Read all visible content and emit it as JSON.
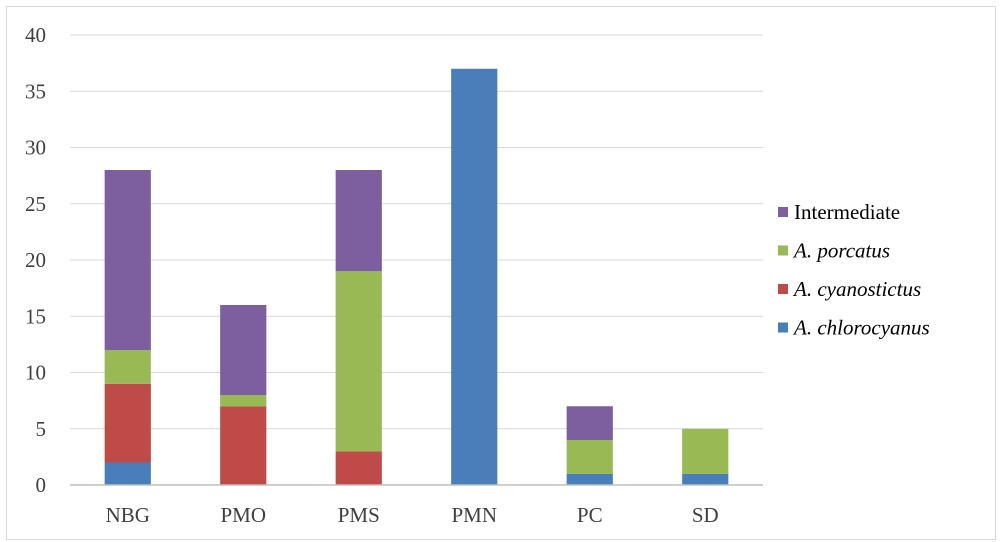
{
  "chart_data": {
    "type": "bar",
    "stacked": true,
    "categories": [
      "NBG",
      "PMO",
      "PMS",
      "PMN",
      "PC",
      "SD"
    ],
    "series": [
      {
        "name": "A. chlorocyanus",
        "italic": true,
        "color": "#4a7ebb",
        "values": [
          2,
          0,
          0,
          37,
          1,
          1
        ]
      },
      {
        "name": "A. cyanostictus",
        "italic": true,
        "color": "#be4b48",
        "values": [
          7,
          7,
          3,
          0,
          0,
          0
        ]
      },
      {
        "name": "A. porcatus",
        "italic": true,
        "color": "#98b954",
        "values": [
          3,
          1,
          16,
          0,
          3,
          4
        ]
      },
      {
        "name": "Intermediate",
        "italic": false,
        "color": "#7d5fa0",
        "values": [
          16,
          8,
          9,
          0,
          3,
          0
        ]
      }
    ],
    "legend_order": [
      "Intermediate",
      "A. porcatus",
      "A. cyanostictus",
      "A. chlorocyanus"
    ],
    "legend_position": "right",
    "ylim": [
      0,
      40
    ],
    "yticks": [
      "0",
      "5",
      "10",
      "15",
      "20",
      "25",
      "30",
      "35",
      "40"
    ],
    "grid": "horizontal",
    "title": "",
    "xlabel": "",
    "ylabel": ""
  }
}
